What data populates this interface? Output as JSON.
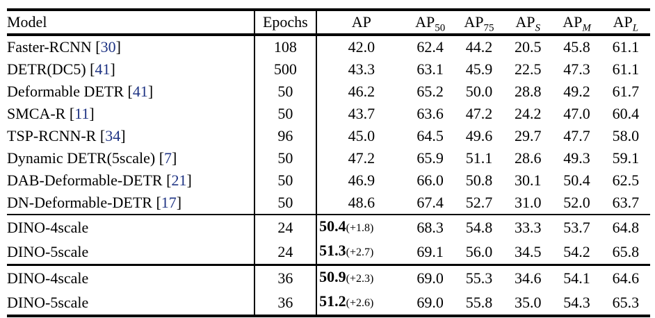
{
  "punct": {
    "open": "[",
    "close": "]"
  },
  "colors": {
    "citation_blue": "#1e3383",
    "text": "#000000",
    "rule": "#000000",
    "background": "#ffffff"
  },
  "table": {
    "headers": {
      "model": "Model",
      "epochs": "Epochs",
      "ap": "AP",
      "ap50": {
        "base": "AP",
        "sub": "50"
      },
      "ap75": {
        "base": "AP",
        "sub": "75"
      },
      "apS": {
        "base": "AP",
        "sub": "S"
      },
      "apM": {
        "base": "AP",
        "sub": "M"
      },
      "apL": {
        "base": "AP",
        "sub": "L"
      }
    },
    "rows": [
      {
        "model": "Faster-RCNN",
        "cite": "30",
        "epochs": "108",
        "ap": "42.0",
        "ap50": "62.4",
        "ap75": "44.2",
        "apS": "20.5",
        "apM": "45.8",
        "apL": "61.1"
      },
      {
        "model": "DETR(DC5)",
        "cite": "41",
        "epochs": "500",
        "ap": "43.3",
        "ap50": "63.1",
        "ap75": "45.9",
        "apS": "22.5",
        "apM": "47.3",
        "apL": "61.1"
      },
      {
        "model": "Deformable DETR",
        "cite": "41",
        "epochs": "50",
        "ap": "46.2",
        "ap50": "65.2",
        "ap75": "50.0",
        "apS": "28.8",
        "apM": "49.2",
        "apL": "61.7"
      },
      {
        "model": "SMCA-R",
        "cite": "11",
        "epochs": "50",
        "ap": "43.7",
        "ap50": "63.6",
        "ap75": "47.2",
        "apS": "24.2",
        "apM": "47.0",
        "apL": "60.4"
      },
      {
        "model": "TSP-RCNN-R",
        "cite": "34",
        "epochs": "96",
        "ap": "45.0",
        "ap50": "64.5",
        "ap75": "49.6",
        "apS": "29.7",
        "apM": "47.7",
        "apL": "58.0"
      },
      {
        "model": "Dynamic DETR(5scale)",
        "cite": "7",
        "epochs": "50",
        "ap": "47.2",
        "ap50": "65.9",
        "ap75": "51.1",
        "apS": "28.6",
        "apM": "49.3",
        "apL": "59.1"
      },
      {
        "model": "DAB-Deformable-DETR",
        "cite": "21",
        "epochs": "50",
        "ap": "46.9",
        "ap50": "66.0",
        "ap75": "50.8",
        "apS": "30.1",
        "apM": "50.4",
        "apL": "62.5"
      },
      {
        "model": "DN-Deformable-DETR",
        "cite": "17",
        "epochs": "50",
        "ap": "48.6",
        "ap50": "67.4",
        "ap75": "52.7",
        "apS": "31.0",
        "apM": "52.0",
        "apL": "63.7"
      },
      {
        "model": "DINO-4scale",
        "epochs": "24",
        "ap": "50.4",
        "gain": "(+1.8)",
        "ap50": "68.3",
        "ap75": "54.8",
        "apS": "33.3",
        "apM": "53.7",
        "apL": "64.8"
      },
      {
        "model": "DINO-5scale",
        "epochs": "24",
        "ap": "51.3",
        "gain": "(+2.7)",
        "ap50": "69.1",
        "ap75": "56.0",
        "apS": "34.5",
        "apM": "54.2",
        "apL": "65.8"
      },
      {
        "model": "DINO-4scale",
        "epochs": "36",
        "ap": "50.9",
        "gain": "(+2.3)",
        "ap50": "69.0",
        "ap75": "55.3",
        "apS": "34.6",
        "apM": "54.1",
        "apL": "64.6"
      },
      {
        "model": "DINO-5scale",
        "epochs": "36",
        "ap": "51.2",
        "gain": "(+2.6)",
        "ap50": "69.0",
        "ap75": "55.8",
        "apS": "35.0",
        "apM": "54.3",
        "apL": "65.3"
      }
    ]
  }
}
